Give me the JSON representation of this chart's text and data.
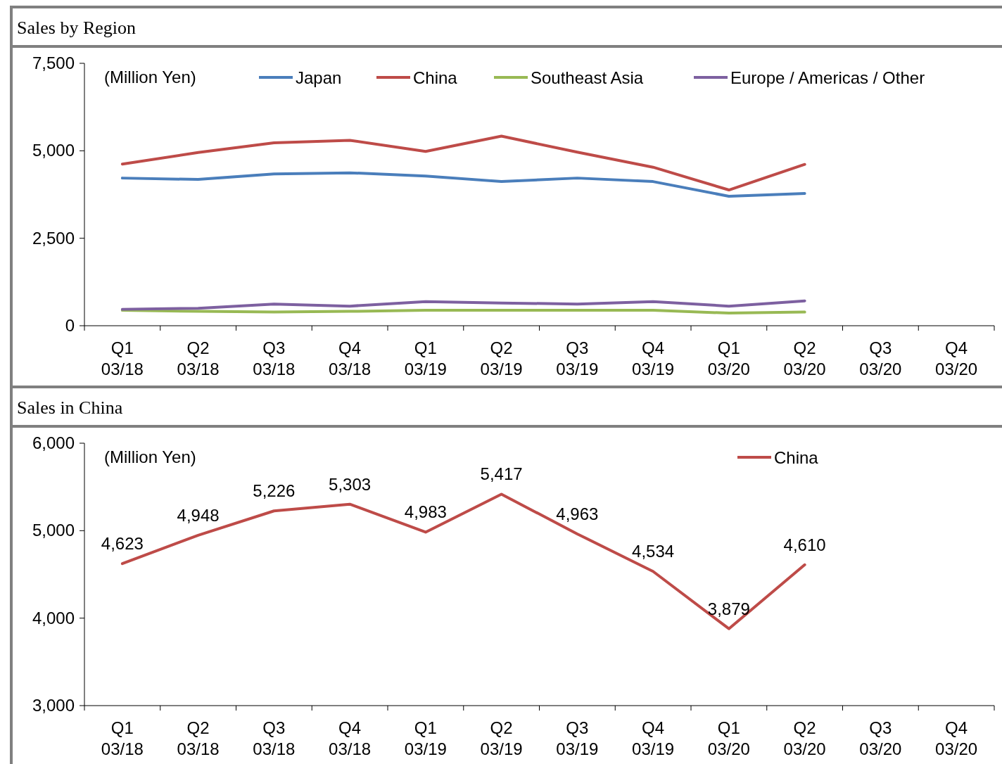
{
  "chart_data": [
    {
      "type": "line",
      "title": "Sales by Region",
      "annotations": [
        "(Million  Yen)"
      ],
      "categories": [
        "Q1\n03/18",
        "Q2\n03/18",
        "Q3\n03/18",
        "Q4\n03/18",
        "Q1\n03/19",
        "Q2\n03/19",
        "Q3\n03/19",
        "Q4\n03/19",
        "Q1\n03/20",
        "Q2\n03/20",
        "Q3\n03/20",
        "Q4\n03/20"
      ],
      "series": [
        {
          "name": "Japan",
          "color": "#4a7ebb",
          "values": [
            4220,
            4180,
            4340,
            4370,
            4280,
            4120,
            4220,
            4120,
            3700,
            3780,
            null,
            null
          ]
        },
        {
          "name": "China",
          "color": "#be4b48",
          "values": [
            4620,
            4950,
            5230,
            5300,
            4980,
            5420,
            4960,
            4530,
            3880,
            4610,
            null,
            null
          ]
        },
        {
          "name": "Southeast Asia",
          "color": "#98b954",
          "values": [
            440,
            410,
            390,
            410,
            440,
            440,
            440,
            440,
            360,
            390,
            null,
            null
          ]
        },
        {
          "name": "Europe / Americas / Other",
          "color": "#7d60a0",
          "values": [
            470,
            500,
            620,
            560,
            690,
            650,
            620,
            690,
            560,
            710,
            null,
            null
          ]
        }
      ],
      "ylim": [
        0,
        7500
      ],
      "yticks": [
        0,
        {
          "value": 2500,
          "label": "2,500"
        },
        {
          "value": 5000,
          "label": "5,000"
        },
        {
          "value": 7500,
          "label": "7,500"
        }
      ],
      "grid": false,
      "legend": "top",
      "marker": "none",
      "line_style": "solid"
    },
    {
      "type": "line",
      "title": "Sales in China",
      "annotations": [
        "(Million  Yen)"
      ],
      "categories": [
        "Q1\n03/18",
        "Q2\n03/18",
        "Q3\n03/18",
        "Q4\n03/18",
        "Q1\n03/19",
        "Q2\n03/19",
        "Q3\n03/19",
        "Q4\n03/19",
        "Q1\n03/20",
        "Q2\n03/20",
        "Q3\n03/20",
        "Q4\n03/20"
      ],
      "series": [
        {
          "name": "China",
          "color": "#be4b48",
          "values": [
            4623,
            4948,
            5226,
            5303,
            4983,
            5417,
            4963,
            4534,
            3879,
            4610,
            null,
            null
          ],
          "value_labels": [
            "4,623",
            "4,948",
            "5,226",
            "5,303",
            "4,983",
            "5,417",
            "4,963",
            "4,534",
            "3,879",
            "4,610",
            null,
            null
          ]
        }
      ],
      "ylim": [
        3000,
        6000
      ],
      "yticks": [
        {
          "value": 3000,
          "label": "3,000"
        },
        {
          "value": 4000,
          "label": "4,000"
        },
        {
          "value": 5000,
          "label": "5,000"
        },
        {
          "value": 6000,
          "label": "6,000"
        }
      ],
      "grid": false,
      "legend": "top right",
      "marker": "none",
      "line_style": "solid"
    }
  ]
}
